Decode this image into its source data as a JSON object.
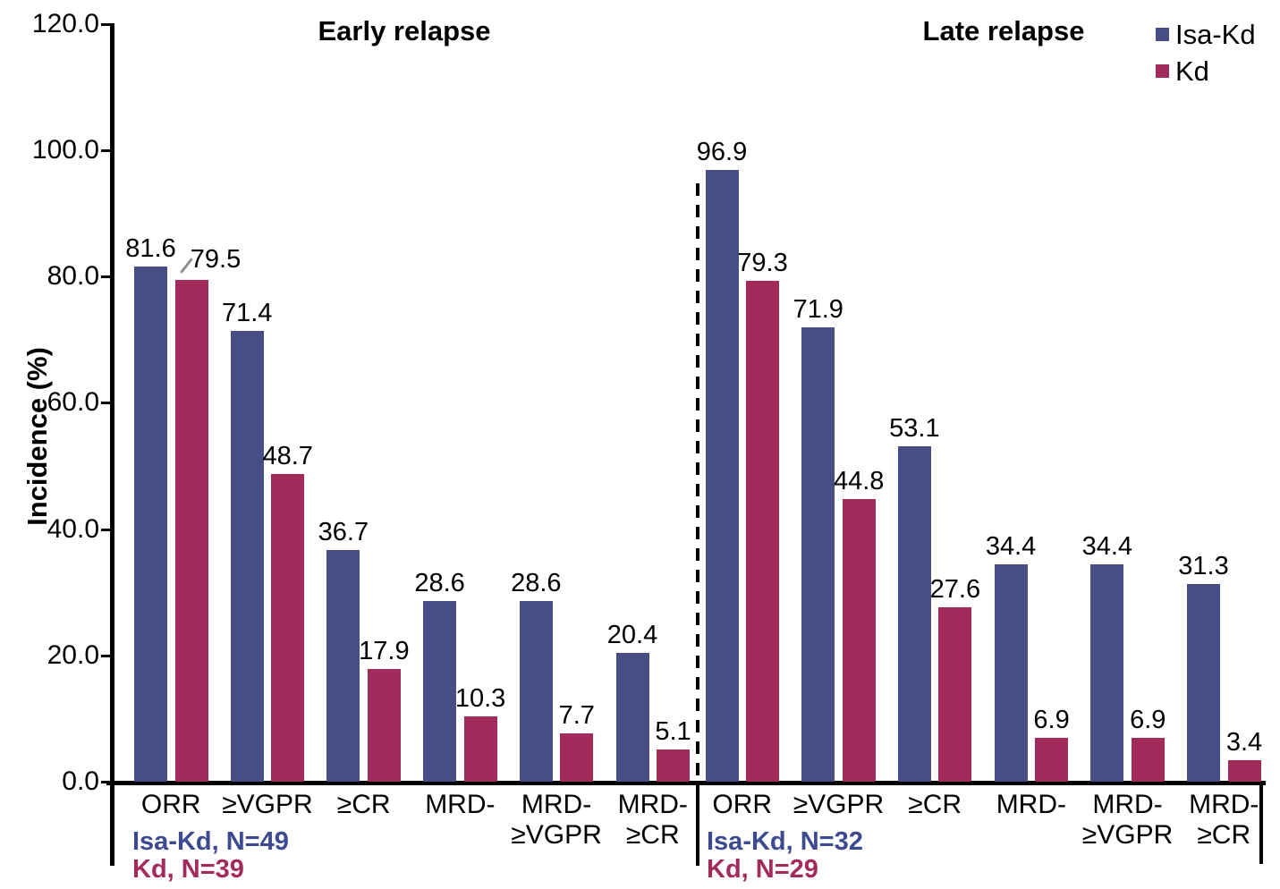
{
  "chart_data": {
    "type": "bar",
    "ylabel": "Incidence (%)",
    "ylim": [
      0,
      120
    ],
    "yticks": [
      0,
      20,
      40,
      60,
      80,
      100,
      120
    ],
    "ytick_format_decimals": 1,
    "legend_position": "top-right",
    "grid": false,
    "series_colors": [
      "#474E86",
      "#A32B5C"
    ],
    "legend": [
      {
        "label": "Isa-Kd",
        "color": "#474E86"
      },
      {
        "label": "Kd",
        "color": "#A32B5C"
      }
    ],
    "panels": [
      {
        "title": "Early relapse",
        "categories": [
          "ORR",
          "≥VGPR",
          "≥CR",
          "MRD-",
          "MRD- ≥VGPR",
          "MRD- ≥CR"
        ],
        "series": [
          {
            "name": "Isa-Kd",
            "n_label": "Isa-Kd, N=49",
            "color": "#474E86",
            "text_color": "#3D4A90",
            "values": [
              81.6,
              71.4,
              36.7,
              28.6,
              28.6,
              20.4
            ]
          },
          {
            "name": "Kd",
            "n_label": "Kd, N=39",
            "color": "#A32B5C",
            "text_color": "#A32B5C",
            "values": [
              79.5,
              48.7,
              17.9,
              10.3,
              7.7,
              5.1
            ]
          }
        ]
      },
      {
        "title": "Late relapse",
        "categories": [
          "ORR",
          "≥VGPR",
          "≥CR",
          "MRD-",
          "MRD- ≥VGPR",
          "MRD- ≥CR"
        ],
        "series": [
          {
            "name": "Isa-Kd",
            "n_label": "Isa-Kd, N=32",
            "color": "#474E86",
            "text_color": "#3D4A90",
            "values": [
              96.9,
              71.9,
              53.1,
              34.4,
              34.4,
              31.3
            ]
          },
          {
            "name": "Kd",
            "n_label": "Kd, N=29",
            "color": "#A32B5C",
            "text_color": "#A32B5C",
            "values": [
              79.3,
              44.8,
              27.6,
              6.9,
              6.9,
              3.4
            ]
          }
        ]
      }
    ]
  }
}
